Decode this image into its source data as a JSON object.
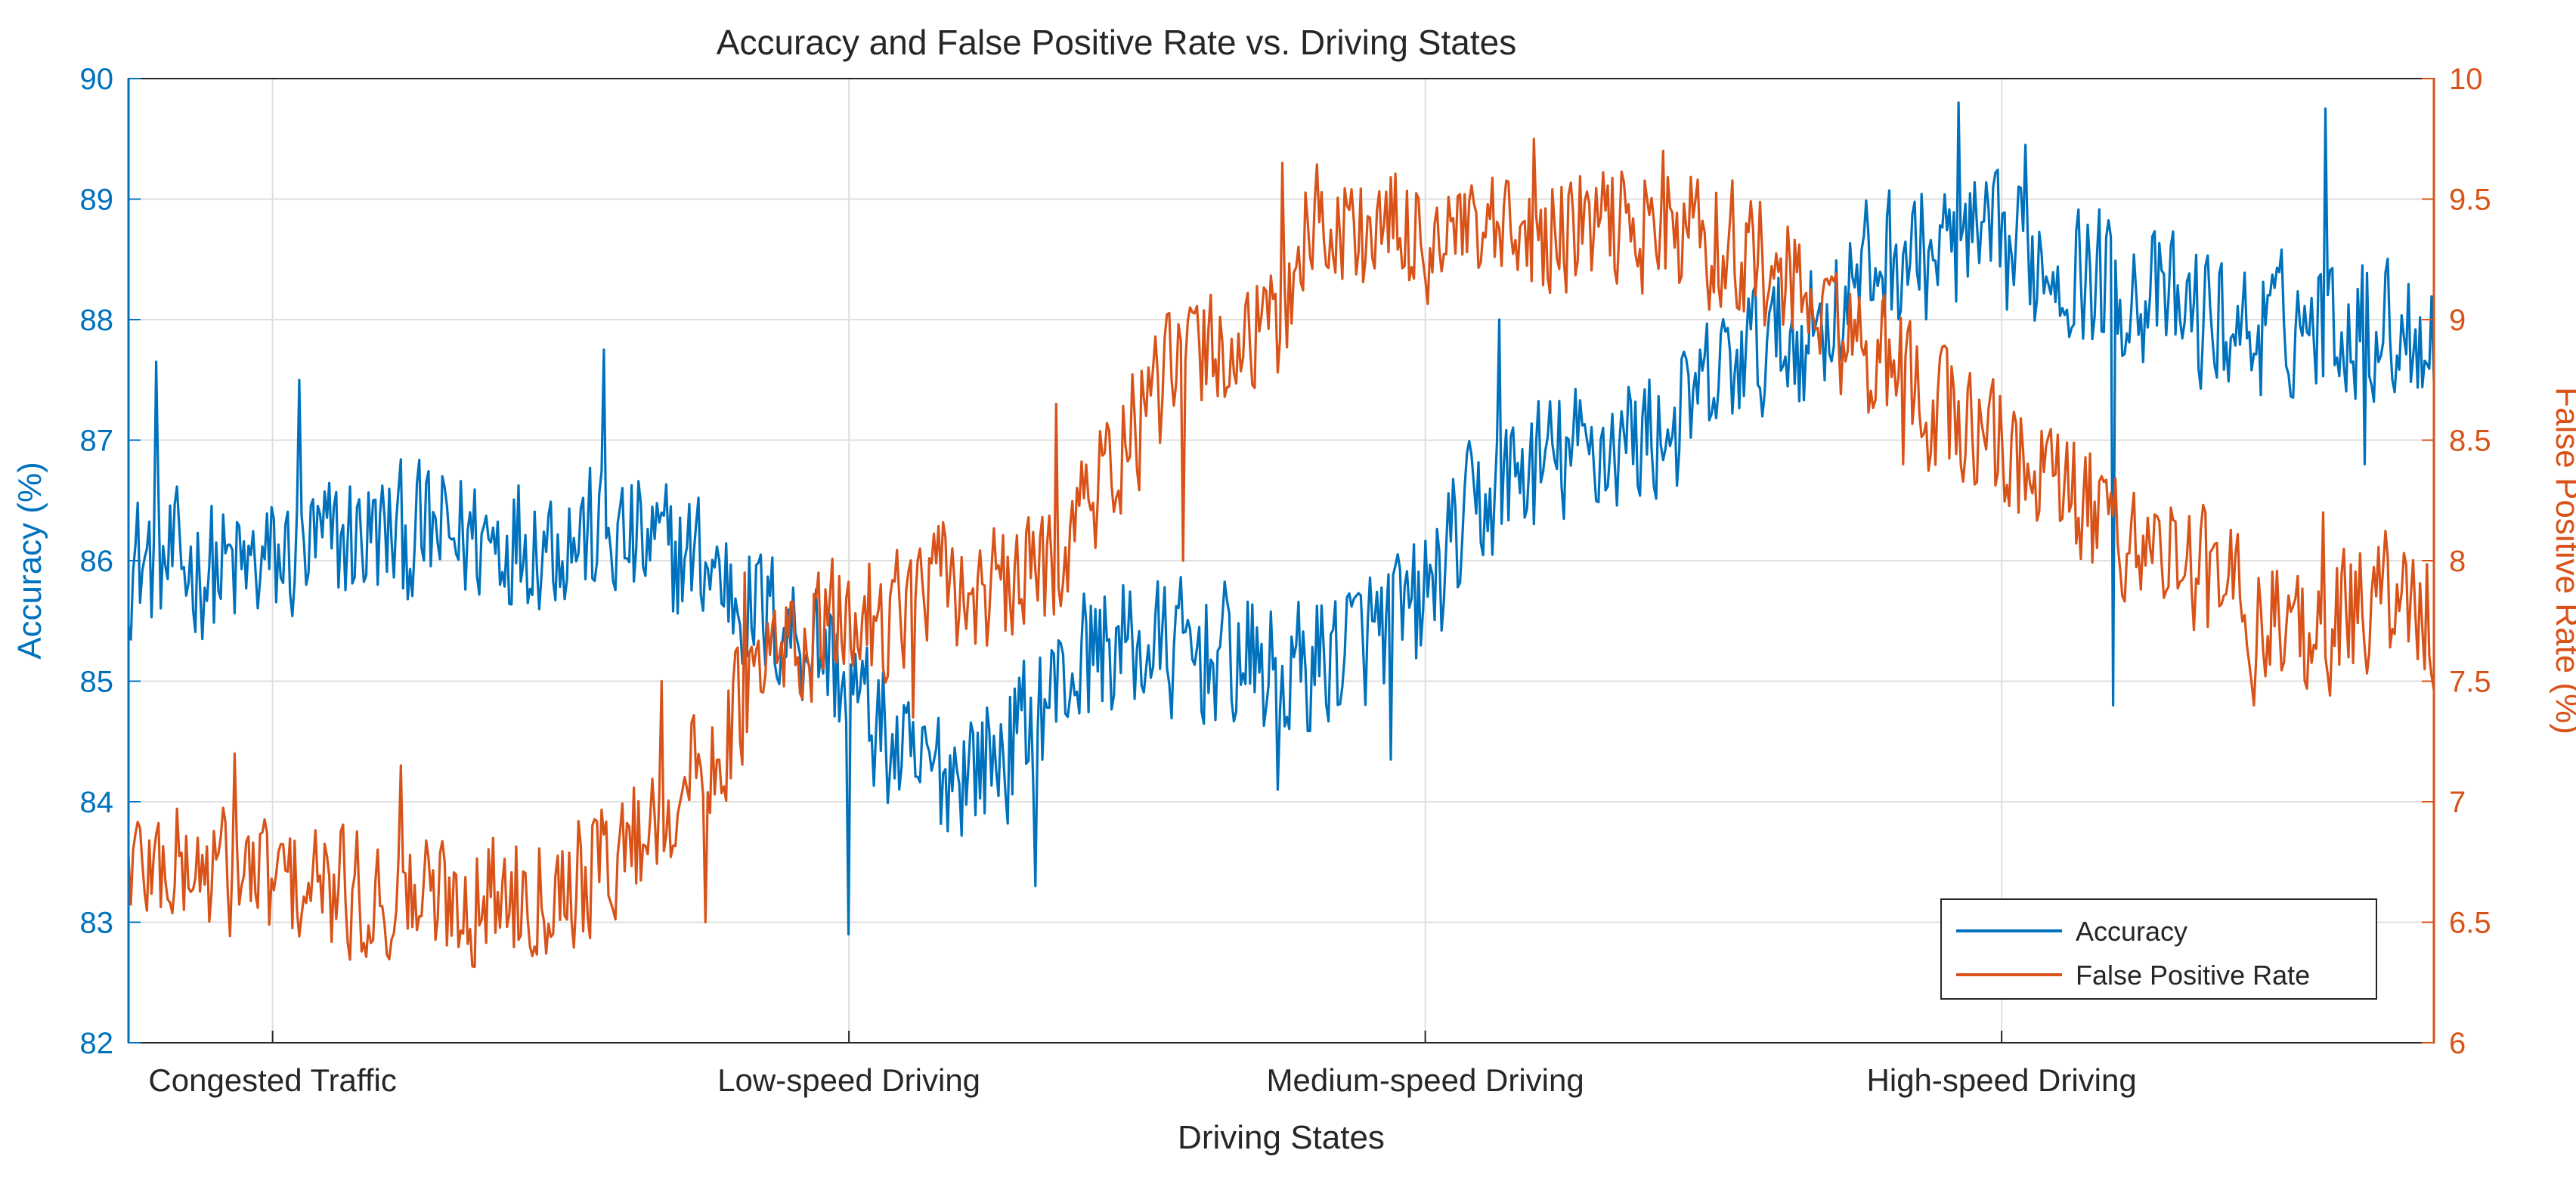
{
  "chart_data": {
    "type": "line",
    "title": "Accuracy and False Positive Rate vs. Driving States",
    "xlabel": "Driving States",
    "categories": [
      "Congested Traffic",
      "Low-speed Driving",
      "Medium-speed Driving",
      "High-speed Driving"
    ],
    "grid": true,
    "legend_position": "bottom-right",
    "left_axis": {
      "label": "Accuracy (%)",
      "ylim": [
        82,
        90
      ],
      "ticks": [
        "82",
        "83",
        "84",
        "85",
        "86",
        "87",
        "88",
        "89",
        "90"
      ],
      "color": "#0072BD"
    },
    "right_axis": {
      "label": "False Positive Rate (%)",
      "ylim": [
        6,
        10
      ],
      "ticks": [
        "6",
        "6.5",
        "7",
        "7.5",
        "8",
        "8.5",
        "9",
        "9.5",
        "10"
      ],
      "color": "#D95319"
    },
    "samples_per_series": 1000,
    "series": [
      {
        "name": "Accuracy",
        "axis": "left",
        "color": "#0072BD",
        "trend_x": [
          0,
          0.05,
          0.1,
          0.2,
          0.25,
          0.27,
          0.3,
          0.34,
          0.38,
          0.4,
          0.42,
          0.48,
          0.5,
          0.53,
          0.56,
          0.58,
          0.6,
          0.63,
          0.67,
          0.7,
          0.73,
          0.76,
          0.8,
          0.83,
          0.86,
          0.9,
          0.92,
          0.95,
          1.0
        ],
        "trend_y": [
          86.0,
          85.9,
          86.2,
          86.2,
          86.0,
          85.6,
          85.3,
          84.2,
          84.4,
          84.9,
          85.3,
          85.2,
          85.0,
          85.3,
          85.6,
          86.3,
          86.7,
          86.9,
          87.1,
          87.7,
          87.9,
          88.5,
          88.6,
          88.5,
          88.3,
          88.0,
          87.9,
          88.0,
          87.9
        ],
        "noise": [
          0.75,
          0.9
        ],
        "spikes": [
          {
            "x": 0.012,
            "y": 87.65
          },
          {
            "x": 0.074,
            "y": 87.5
          },
          {
            "x": 0.206,
            "y": 87.75
          },
          {
            "x": 0.312,
            "y": 82.9
          },
          {
            "x": 0.393,
            "y": 83.3
          },
          {
            "x": 0.498,
            "y": 84.1
          },
          {
            "x": 0.548,
            "y": 84.35
          },
          {
            "x": 0.595,
            "y": 88.0
          },
          {
            "x": 0.794,
            "y": 89.8
          },
          {
            "x": 0.823,
            "y": 89.45
          },
          {
            "x": 0.861,
            "y": 84.8
          },
          {
            "x": 0.953,
            "y": 89.75
          },
          {
            "x": 0.97,
            "y": 86.8
          }
        ]
      },
      {
        "name": "False Positive Rate",
        "axis": "right",
        "color": "#D95319",
        "trend_x": [
          0,
          0.05,
          0.1,
          0.15,
          0.2,
          0.22,
          0.25,
          0.28,
          0.3,
          0.33,
          0.35,
          0.38,
          0.4,
          0.42,
          0.44,
          0.46,
          0.48,
          0.5,
          0.51,
          0.55,
          0.6,
          0.65,
          0.7,
          0.73,
          0.75,
          0.78,
          0.8,
          0.85,
          0.88,
          0.9,
          0.92,
          0.95,
          0.98,
          1.0
        ],
        "trend_y": [
          6.75,
          6.7,
          6.6,
          6.6,
          6.7,
          6.85,
          7.15,
          7.6,
          7.7,
          7.8,
          7.9,
          7.85,
          8.0,
          8.3,
          8.6,
          8.85,
          8.9,
          8.95,
          9.4,
          9.35,
          9.3,
          9.4,
          9.3,
          9.05,
          8.9,
          8.65,
          8.55,
          8.2,
          8.05,
          7.95,
          7.8,
          7.7,
          7.85,
          7.75
        ],
        "noise": [
          0.35,
          0.4
        ],
        "spikes": [
          {
            "x": 0.046,
            "y": 7.2
          },
          {
            "x": 0.118,
            "y": 7.15
          },
          {
            "x": 0.231,
            "y": 7.5
          },
          {
            "x": 0.25,
            "y": 6.5
          },
          {
            "x": 0.267,
            "y": 7.95
          },
          {
            "x": 0.34,
            "y": 7.35
          },
          {
            "x": 0.402,
            "y": 8.65
          },
          {
            "x": 0.457,
            "y": 8.0
          },
          {
            "x": 0.5,
            "y": 9.65
          },
          {
            "x": 0.61,
            "y": 9.75
          },
          {
            "x": 0.666,
            "y": 9.7
          },
          {
            "x": 0.77,
            "y": 8.4
          },
          {
            "x": 0.808,
            "y": 8.7
          },
          {
            "x": 0.922,
            "y": 7.4
          },
          {
            "x": 0.952,
            "y": 8.2
          },
          {
            "x": 0.996,
            "y": 7.55
          }
        ]
      }
    ]
  }
}
